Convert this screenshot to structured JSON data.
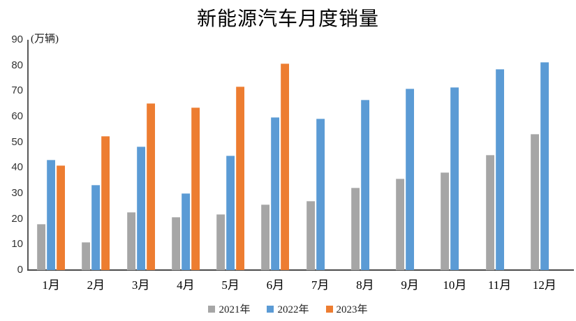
{
  "chart_data": {
    "type": "bar",
    "title": "新能源汽车月度销量",
    "unit_label": "(万辆)",
    "categories": [
      "1月",
      "2月",
      "3月",
      "4月",
      "5月",
      "6月",
      "7月",
      "8月",
      "9月",
      "10月",
      "11月",
      "12月"
    ],
    "series": [
      {
        "name": "2021年",
        "color": "#A6A6A6",
        "values": [
          17.9,
          11.0,
          22.6,
          20.6,
          21.7,
          25.6,
          27.1,
          32.1,
          35.7,
          38.3,
          45.0,
          53.1
        ]
      },
      {
        "name": "2022年",
        "color": "#5B9BD5",
        "values": [
          43.1,
          33.4,
          48.4,
          29.9,
          44.7,
          59.6,
          59.3,
          66.6,
          70.8,
          71.4,
          78.6,
          81.4
        ]
      },
      {
        "name": "2023年",
        "color": "#ED7D31",
        "values": [
          40.8,
          52.5,
          65.3,
          63.6,
          71.7,
          80.6,
          null,
          null,
          null,
          null,
          null,
          null
        ]
      }
    ],
    "xlabel": "",
    "ylabel": "",
    "ylim": [
      0,
      90
    ],
    "yticks": [
      0,
      10,
      20,
      30,
      40,
      50,
      60,
      70,
      80,
      90
    ],
    "grid": "off",
    "legend_position": "bottom"
  }
}
